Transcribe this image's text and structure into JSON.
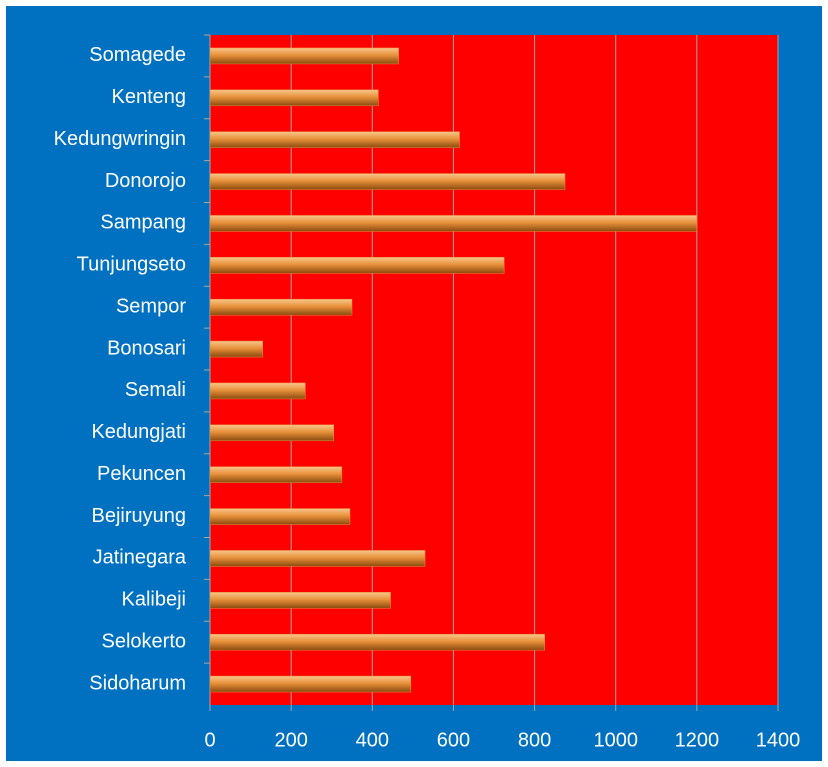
{
  "chart_data": {
    "type": "hbar",
    "categories": [
      "Somagede",
      "Kenteng",
      "Kedungwringin",
      "Donorojo",
      "Sampang",
      "Tunjungseto",
      "Sempor",
      "Bonosari",
      "Semali",
      "Kedungjati",
      "Pekuncen",
      "Bejiruyung",
      "Jatinegara",
      "Kalibeji",
      "Selokerto",
      "Sidoharum"
    ],
    "values": [
      465,
      415,
      615,
      875,
      1200,
      725,
      350,
      130,
      235,
      305,
      325,
      345,
      530,
      445,
      825,
      495
    ],
    "color": "#e8913a",
    "xlim": [
      0,
      1400
    ],
    "xticks": [
      0,
      200,
      400,
      600,
      800,
      1000,
      1200,
      1400
    ],
    "grid": true
  }
}
